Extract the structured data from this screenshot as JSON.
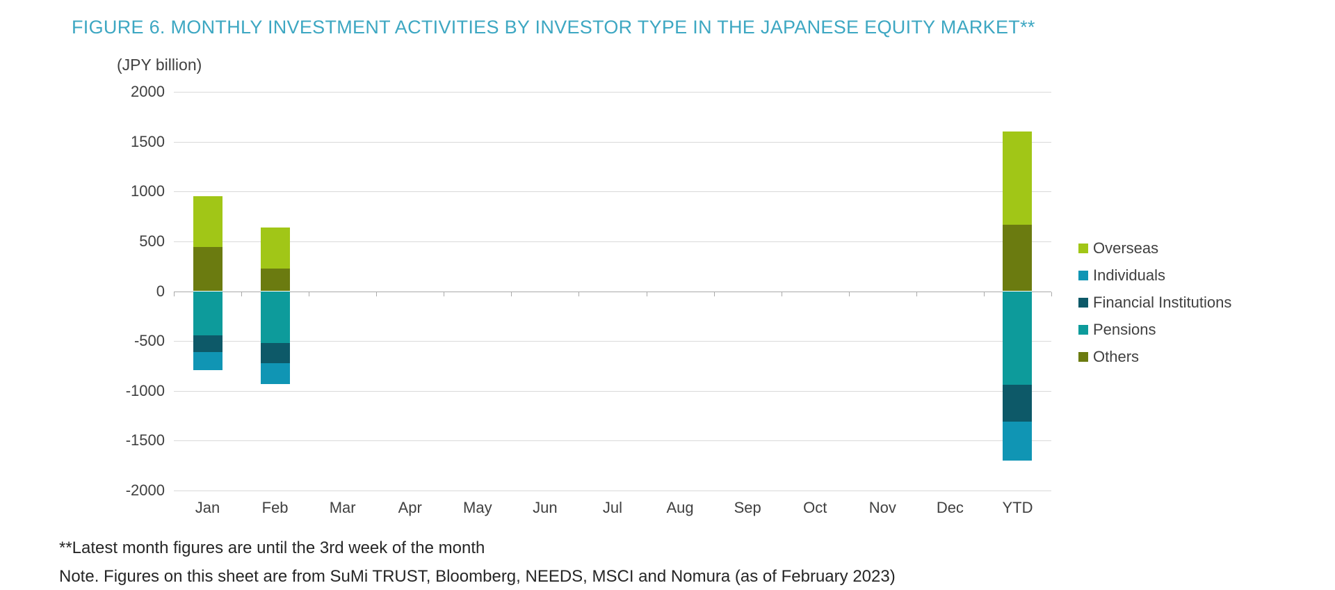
{
  "title": "FIGURE 6. MONTHLY INVESTMENT ACTIVITIES BY INVESTOR TYPE IN THE JAPANESE EQUITY MARKET**",
  "axis_unit_label": "(JPY billion)",
  "footnotes": [
    "**Latest month figures are until the 3rd week of the month",
    "Note. Figures on this sheet are from SuMi TRUST, Bloomberg, NEEDS, MSCI and Nomura (as of February 2023)"
  ],
  "colors": {
    "title_accent": "#3da7c2",
    "axis_text": "#404040",
    "gridline": "#d9d9d9",
    "zero_axis": "#a9a9a9",
    "overseas": "#a1c617",
    "individuals": "#1095b4",
    "financial_institutions": "#0d5968",
    "pensions": "#0d9b9b",
    "others": "#6b7b10"
  },
  "chart_data": {
    "type": "bar",
    "stacked": true,
    "title": "FIGURE 6. MONTHLY INVESTMENT ACTIVITIES BY INVESTOR TYPE IN THE JAPANESE EQUITY MARKET**",
    "ylabel": "(JPY billion)",
    "xlabel": "",
    "categories": [
      "Jan",
      "Feb",
      "Mar",
      "Apr",
      "May",
      "Jun",
      "Jul",
      "Aug",
      "Sep",
      "Oct",
      "Nov",
      "Dec",
      "YTD"
    ],
    "series": [
      {
        "name": "Overseas",
        "color": "#a1c617",
        "values": [
          510,
          410,
          0,
          0,
          0,
          0,
          0,
          0,
          0,
          0,
          0,
          0,
          930
        ]
      },
      {
        "name": "Individuals",
        "color": "#1095b4",
        "values": [
          -180,
          -210,
          0,
          0,
          0,
          0,
          0,
          0,
          0,
          0,
          0,
          0,
          -390
        ]
      },
      {
        "name": "Financial Institutions",
        "color": "#0d5968",
        "values": [
          -170,
          -200,
          0,
          0,
          0,
          0,
          0,
          0,
          0,
          0,
          0,
          0,
          -370
        ]
      },
      {
        "name": "Pensions",
        "color": "#0d9b9b",
        "values": [
          -440,
          -520,
          0,
          0,
          0,
          0,
          0,
          0,
          0,
          0,
          0,
          0,
          -940
        ]
      },
      {
        "name": "Others",
        "color": "#6b7b10",
        "values": [
          440,
          230,
          0,
          0,
          0,
          0,
          0,
          0,
          0,
          0,
          0,
          0,
          670
        ]
      }
    ],
    "draw_order": [
      "Others",
      "Overseas",
      "Pensions",
      "Financial Institutions",
      "Individuals"
    ],
    "ylim": [
      -2000,
      2000
    ],
    "ytick_step": 500,
    "grid": "horizontal",
    "legend_position": "right"
  }
}
